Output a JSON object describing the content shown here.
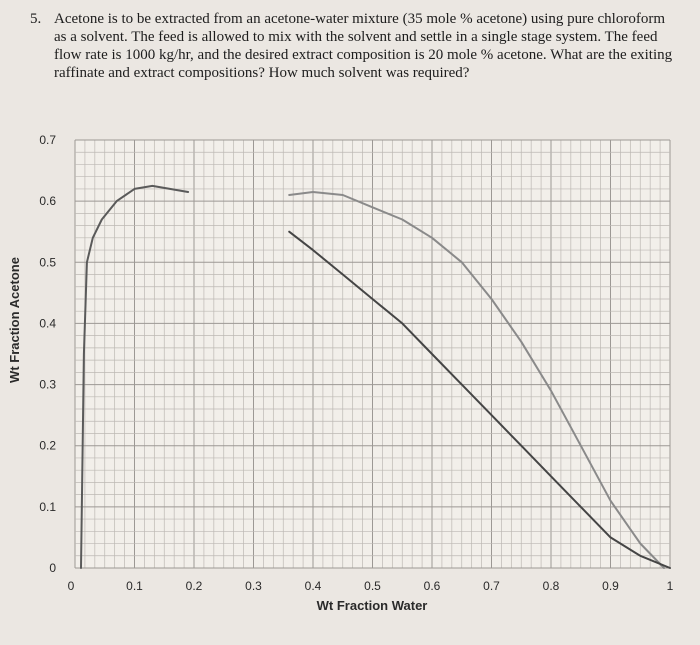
{
  "problem": {
    "number": "5.",
    "text": "Acetone is to be extracted from an acetone-water mixture (35 mole % acetone) using pure chloroform as a solvent. The feed is allowed to mix with the solvent and settle in a single stage system. The feed flow rate is 1000 kg/hr, and the desired extract composition is 20 mole % acetone. What are the exiting raffinate and extract compositions? How much solvent was required?"
  },
  "chart_data": {
    "type": "line",
    "xlabel": "Wt Fraction Water",
    "ylabel": "Wt Fraction Acetone",
    "xlim": [
      0,
      1
    ],
    "ylim": [
      0,
      0.7
    ],
    "x_ticks": [
      "0",
      "0.1",
      "0.2",
      "0.3",
      "0.4",
      "0.5",
      "0.6",
      "0.7",
      "0.8",
      "0.9",
      "1"
    ],
    "y_ticks": [
      "0",
      "0.1",
      "0.2",
      "0.3",
      "0.4",
      "0.5",
      "0.6",
      "0.7"
    ],
    "grid": true,
    "series": [
      {
        "color": "#5a5a5a",
        "points": [
          [
            0.01,
            0.0
          ],
          [
            0.015,
            0.35
          ],
          [
            0.02,
            0.5
          ],
          [
            0.03,
            0.54
          ],
          [
            0.045,
            0.57
          ],
          [
            0.07,
            0.6
          ],
          [
            0.1,
            0.62
          ],
          [
            0.13,
            0.625
          ],
          [
            0.19,
            0.615
          ]
        ]
      },
      {
        "color": "#8a8a8a",
        "points": [
          [
            0.36,
            0.61
          ],
          [
            0.4,
            0.615
          ],
          [
            0.45,
            0.61
          ],
          [
            0.5,
            0.59
          ],
          [
            0.55,
            0.57
          ],
          [
            0.6,
            0.54
          ],
          [
            0.65,
            0.5
          ],
          [
            0.7,
            0.44
          ],
          [
            0.75,
            0.37
          ],
          [
            0.8,
            0.29
          ],
          [
            0.85,
            0.2
          ],
          [
            0.9,
            0.11
          ],
          [
            0.95,
            0.04
          ],
          [
            0.99,
            0.0
          ]
        ]
      },
      {
        "color": "#454545",
        "points": [
          [
            0.36,
            0.55
          ],
          [
            0.4,
            0.52
          ],
          [
            0.45,
            0.48
          ],
          [
            0.5,
            0.44
          ],
          [
            0.55,
            0.4
          ],
          [
            0.6,
            0.35
          ],
          [
            0.65,
            0.3
          ],
          [
            0.7,
            0.25
          ],
          [
            0.75,
            0.2
          ],
          [
            0.8,
            0.15
          ],
          [
            0.85,
            0.1
          ],
          [
            0.9,
            0.05
          ],
          [
            0.95,
            0.02
          ],
          [
            1.0,
            0.0
          ]
        ]
      }
    ]
  }
}
